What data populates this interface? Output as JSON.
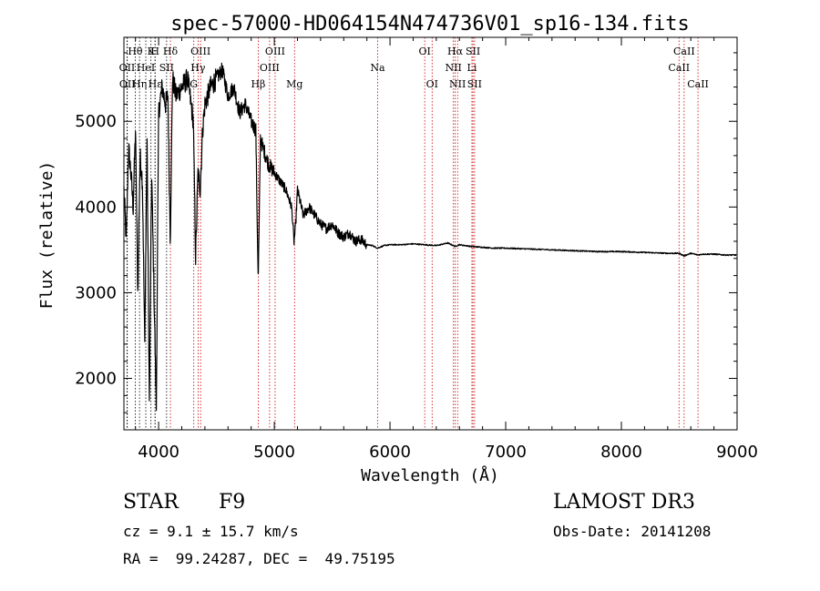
{
  "chart_data": {
    "type": "line",
    "title": "spec-57000-HD064154N474736V01_sp16-134.fits",
    "xlabel": "Wavelength (Å)",
    "ylabel": "Flux (relative)",
    "xlim": [
      3700,
      9000
    ],
    "ylim": [
      1400,
      5980
    ],
    "x_ticks": [
      4000,
      5000,
      6000,
      7000,
      8000,
      9000
    ],
    "x_tick_labels": [
      "4000",
      "5000",
      "6000",
      "7000",
      "8000",
      "9000"
    ],
    "y_ticks": [
      2000,
      3000,
      4000,
      5000
    ],
    "y_tick_labels": [
      "2000",
      "3000",
      "4000",
      "5000"
    ],
    "grid": false,
    "series": [
      {
        "name": "spectrum",
        "color": "#000000",
        "x": [
          3700,
          3720,
          3740,
          3760,
          3780,
          3800,
          3820,
          3840,
          3860,
          3880,
          3900,
          3920,
          3940,
          3960,
          3980,
          4000,
          4030,
          4060,
          4080,
          4101,
          4120,
          4150,
          4200,
          4250,
          4300,
          4320,
          4340,
          4360,
          4380,
          4400,
          4450,
          4500,
          4550,
          4600,
          4650,
          4700,
          4750,
          4800,
          4840,
          4861,
          4880,
          4900,
          4950,
          5000,
          5050,
          5100,
          5150,
          5170,
          5183,
          5200,
          5250,
          5300,
          5350,
          5400,
          5450,
          5500,
          5550,
          5600,
          5650,
          5700,
          5750,
          5800,
          5850,
          5890,
          5950,
          6000,
          6100,
          6200,
          6300,
          6400,
          6500,
          6563,
          6600,
          6700,
          6800,
          6900,
          7000,
          7200,
          7400,
          7600,
          7800,
          8000,
          8200,
          8400,
          8500,
          8542,
          8600,
          8662,
          8700,
          8800,
          8900,
          8990
        ],
        "values": [
          4200,
          3600,
          4700,
          4400,
          4000,
          4900,
          3000,
          4600,
          4300,
          2400,
          4800,
          1700,
          4400,
          3000,
          1650,
          5100,
          5400,
          5200,
          5300,
          3600,
          5500,
          5300,
          5400,
          5500,
          5000,
          3400,
          4400,
          4200,
          4900,
          5200,
          5400,
          5500,
          5600,
          5300,
          5400,
          5100,
          5200,
          5000,
          4900,
          3100,
          4800,
          4700,
          4500,
          4400,
          4300,
          4200,
          4000,
          3600,
          3750,
          4200,
          3900,
          4000,
          3900,
          3800,
          3750,
          3800,
          3700,
          3650,
          3700,
          3600,
          3620,
          3560,
          3550,
          3520,
          3550,
          3560,
          3560,
          3570,
          3560,
          3550,
          3580,
          3540,
          3560,
          3540,
          3530,
          3520,
          3520,
          3510,
          3500,
          3490,
          3480,
          3480,
          3470,
          3460,
          3460,
          3430,
          3460,
          3440,
          3450,
          3450,
          3440,
          3440
        ]
      }
    ],
    "lines": [
      {
        "label": "OII",
        "wavelength": 3727,
        "color": "#000000",
        "row": 2
      },
      {
        "label": "OII",
        "wavelength": 3729,
        "color": "#000000",
        "row": 3
      },
      {
        "label": "Hθ",
        "wavelength": 3798,
        "color": "#000000",
        "row": 1
      },
      {
        "label": "Hη",
        "wavelength": 3835,
        "color": "#000000",
        "row": 3
      },
      {
        "label": "HeI",
        "wavelength": 3889,
        "color": "#000000",
        "row": 2
      },
      {
        "label": "K",
        "wavelength": 3934,
        "color": "#000000",
        "row": 1
      },
      {
        "label": "H",
        "wavelength": 3969,
        "color": "#000000",
        "row": 1
      },
      {
        "label": "SII",
        "wavelength": 4069,
        "color": "#000000",
        "row": 2
      },
      {
        "label": "Hδ",
        "wavelength": 4102,
        "color": "#cc0000",
        "row": 1
      },
      {
        "label": "Hε",
        "wavelength": 3970,
        "color": "#000000",
        "row": 3
      },
      {
        "label": "OIII",
        "wavelength": 4363,
        "color": "#cc0000",
        "row": 1
      },
      {
        "label": "Hγ",
        "wavelength": 4341,
        "color": "#cc0000",
        "row": 2
      },
      {
        "label": "G",
        "wavelength": 4304,
        "color": "#cc0000",
        "row": 3
      },
      {
        "label": "Hβ",
        "wavelength": 4861,
        "color": "#cc0000",
        "row": 3
      },
      {
        "label": "OIII",
        "wavelength": 5007,
        "color": "#cc0000",
        "row": 1
      },
      {
        "label": "OIII",
        "wavelength": 4959,
        "color": "#cc0000",
        "row": 2
      },
      {
        "label": "Mg",
        "wavelength": 5175,
        "color": "#cc0000",
        "row": 3
      },
      {
        "label": "Na",
        "wavelength": 5893,
        "color": "#cc0000",
        "row": 2
      },
      {
        "label": "OI",
        "wavelength": 6300,
        "color": "#cc0000",
        "row": 1
      },
      {
        "label": "OI",
        "wavelength": 6364,
        "color": "#cc0000",
        "row": 3
      },
      {
        "label": "Hα",
        "wavelength": 6563,
        "color": "#cc0000",
        "row": 1
      },
      {
        "label": "NII",
        "wavelength": 6548,
        "color": "#cc0000",
        "row": 2
      },
      {
        "label": "NII",
        "wavelength": 6584,
        "color": "#cc0000",
        "row": 3
      },
      {
        "label": "SII",
        "wavelength": 6717,
        "color": "#cc0000",
        "row": 1
      },
      {
        "label": "Li",
        "wavelength": 6708,
        "color": "#cc0000",
        "row": 2
      },
      {
        "label": "SII",
        "wavelength": 6731,
        "color": "#cc0000",
        "row": 3
      },
      {
        "label": "CaII",
        "wavelength": 8542,
        "color": "#cc0000",
        "row": 1
      },
      {
        "label": "CaII",
        "wavelength": 8498,
        "color": "#cc0000",
        "row": 2
      },
      {
        "label": "CaII",
        "wavelength": 8662,
        "color": "#cc0000",
        "row": 3
      }
    ]
  },
  "info": {
    "object_type": "STAR",
    "subclass": "F9",
    "survey": "LAMOST DR3",
    "cz": "cz = 9.1 ± 15.7 km/s",
    "obs_date": "Obs-Date: 20141208",
    "coords": "RA =  99.24287, DEC =  49.75195"
  }
}
